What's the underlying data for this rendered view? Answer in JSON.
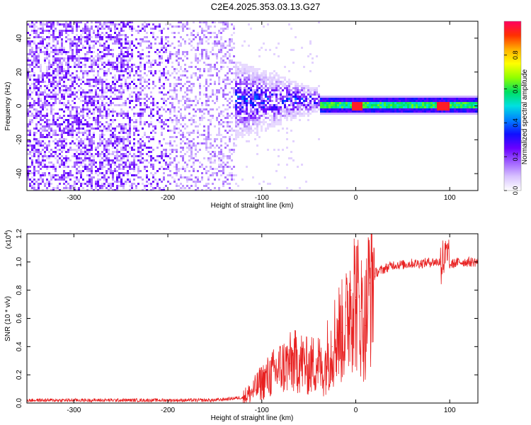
{
  "title": "C2E4.2025.353.03.13.G27",
  "chart_data": [
    {
      "type": "heatmap",
      "name": "spectrogram",
      "xlabel": "Height of straight line (km)",
      "ylabel": "Frequency (Hz)",
      "xlim": [
        -350,
        130
      ],
      "ylim": [
        -50,
        50
      ],
      "x_ticks": [
        -300,
        -200,
        -100,
        0,
        100
      ],
      "x_tick_labels": [
        "-300",
        "-200",
        "-100",
        "0",
        "100"
      ],
      "y_ticks": [
        40,
        20,
        0,
        -20,
        -40
      ],
      "y_tick_labels": [
        "40",
        "20",
        "0",
        "-20",
        "-40"
      ],
      "colorbar": {
        "label": "Normalized spectral amplitude",
        "range": [
          0,
          1
        ],
        "ticks": [
          0.0,
          0.2,
          0.4,
          0.6,
          0.8
        ],
        "tick_labels": [
          "0.0",
          "0.2",
          "0.4",
          "0.6",
          "0.8"
        ],
        "colors": [
          "#ffffff",
          "#d8c2ff",
          "#a060ff",
          "#6a00ff",
          "#1010ff",
          "#0080ff",
          "#00e0e0",
          "#00e060",
          "#90ff00",
          "#ffff00",
          "#ffb000",
          "#ff3000",
          "#ff0060"
        ]
      },
      "features": {
        "noise_region_x": [
          -350,
          -130
        ],
        "signal_center_freq_hz": 1,
        "signal_start_x": -40,
        "strong_peak_x": [
          0,
          92
        ]
      }
    },
    {
      "type": "line",
      "name": "snr",
      "xlabel": "Height of straight line (km)",
      "ylabel": "SNR (10 * v/v)",
      "y_multiplier_label": "(x10",
      "y_multiplier_exponent": "4",
      "y_multiplier_close": ")",
      "xlim": [
        -350,
        130
      ],
      "ylim": [
        0,
        1.2
      ],
      "x_ticks": [
        -300,
        -200,
        -100,
        0,
        100
      ],
      "x_tick_labels": [
        "-300",
        "-200",
        "-100",
        "0",
        "100"
      ],
      "y_ticks": [
        0,
        0.2,
        0.4,
        0.6,
        0.8,
        1.0,
        1.2
      ],
      "y_tick_labels": [
        "0.0",
        "0.2",
        "0.4",
        "0.6",
        "0.8",
        "1.0",
        "1.2"
      ],
      "line_color": "#e82020",
      "series": [
        {
          "name": "SNR",
          "x": [
            -350,
            -300,
            -250,
            -200,
            -150,
            -120,
            -110,
            -100,
            -90,
            -80,
            -70,
            -60,
            -50,
            -40,
            -35,
            -30,
            -25,
            -20,
            -15,
            -10,
            -5,
            0,
            5,
            10,
            15,
            20,
            30,
            40,
            50,
            60,
            70,
            80,
            90,
            95,
            100,
            110,
            120,
            130
          ],
          "y": [
            0.02,
            0.02,
            0.02,
            0.02,
            0.02,
            0.04,
            0.08,
            0.15,
            0.2,
            0.25,
            0.28,
            0.3,
            0.25,
            0.3,
            0.2,
            0.35,
            0.4,
            0.5,
            0.5,
            0.55,
            0.8,
            0.75,
            0.65,
            0.55,
            0.85,
            0.92,
            0.95,
            0.98,
            0.98,
            0.99,
            0.99,
            1.0,
            1.0,
            1.02,
            0.98,
            1.0,
            1.0,
            1.0
          ]
        }
      ]
    }
  ]
}
